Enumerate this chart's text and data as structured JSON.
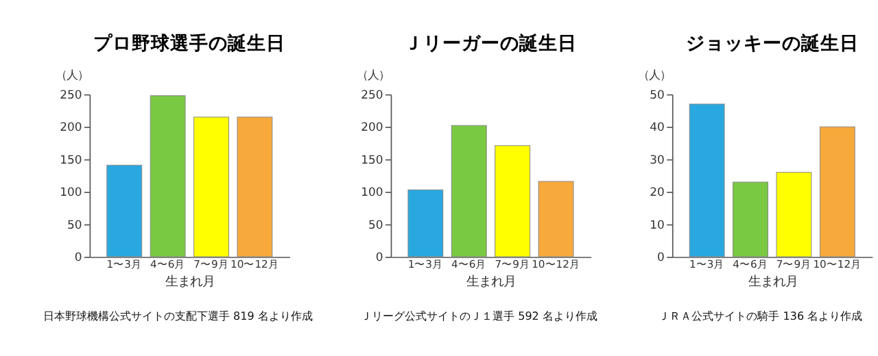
{
  "chart_data": [
    {
      "type": "bar",
      "title": "プロ野球選手の誕生日",
      "ylabel": "（人）",
      "xlabel": "生まれ月",
      "categories": [
        "1〜3月",
        "4〜6月",
        "7〜9月",
        "10〜12月"
      ],
      "values": [
        141,
        248,
        215,
        215
      ],
      "colors": [
        "#29a8e0",
        "#7ac943",
        "#ffff00",
        "#f7a93b"
      ],
      "ylim": [
        0,
        250
      ],
      "yticks": [
        0,
        50,
        100,
        150,
        200,
        250
      ],
      "grid": false,
      "annotations": [
        "日本野球機構公式サイトの支配下選手 819 名より作成"
      ]
    },
    {
      "type": "bar",
      "title": "Ｊリーガーの誕生日",
      "ylabel": "（人）",
      "xlabel": "生まれ月",
      "categories": [
        "1〜3月",
        "4〜6月",
        "7〜9月",
        "10〜12月"
      ],
      "values": [
        103,
        202,
        171,
        116
      ],
      "colors": [
        "#29a8e0",
        "#7ac943",
        "#ffff00",
        "#f7a93b"
      ],
      "ylim": [
        0,
        250
      ],
      "yticks": [
        0,
        50,
        100,
        150,
        200,
        250
      ],
      "grid": false,
      "annotations": [
        "Ｊリーグ公式サイトのＪ１選手 592 名より作成"
      ]
    },
    {
      "type": "bar",
      "title": "ジョッキーの誕生日",
      "ylabel": "（人）",
      "xlabel": "生まれ月",
      "categories": [
        "1〜3月",
        "4〜6月",
        "7〜9月",
        "10〜12月"
      ],
      "values": [
        47,
        23,
        26,
        40
      ],
      "colors": [
        "#29a8e0",
        "#7ac943",
        "#ffff00",
        "#f7a93b"
      ],
      "ylim": [
        0,
        50
      ],
      "yticks": [
        0,
        10,
        20,
        30,
        40,
        50
      ],
      "grid": false,
      "annotations": [
        "ＪＲＡ公式サイトの騎手 136 名より作成"
      ]
    }
  ]
}
